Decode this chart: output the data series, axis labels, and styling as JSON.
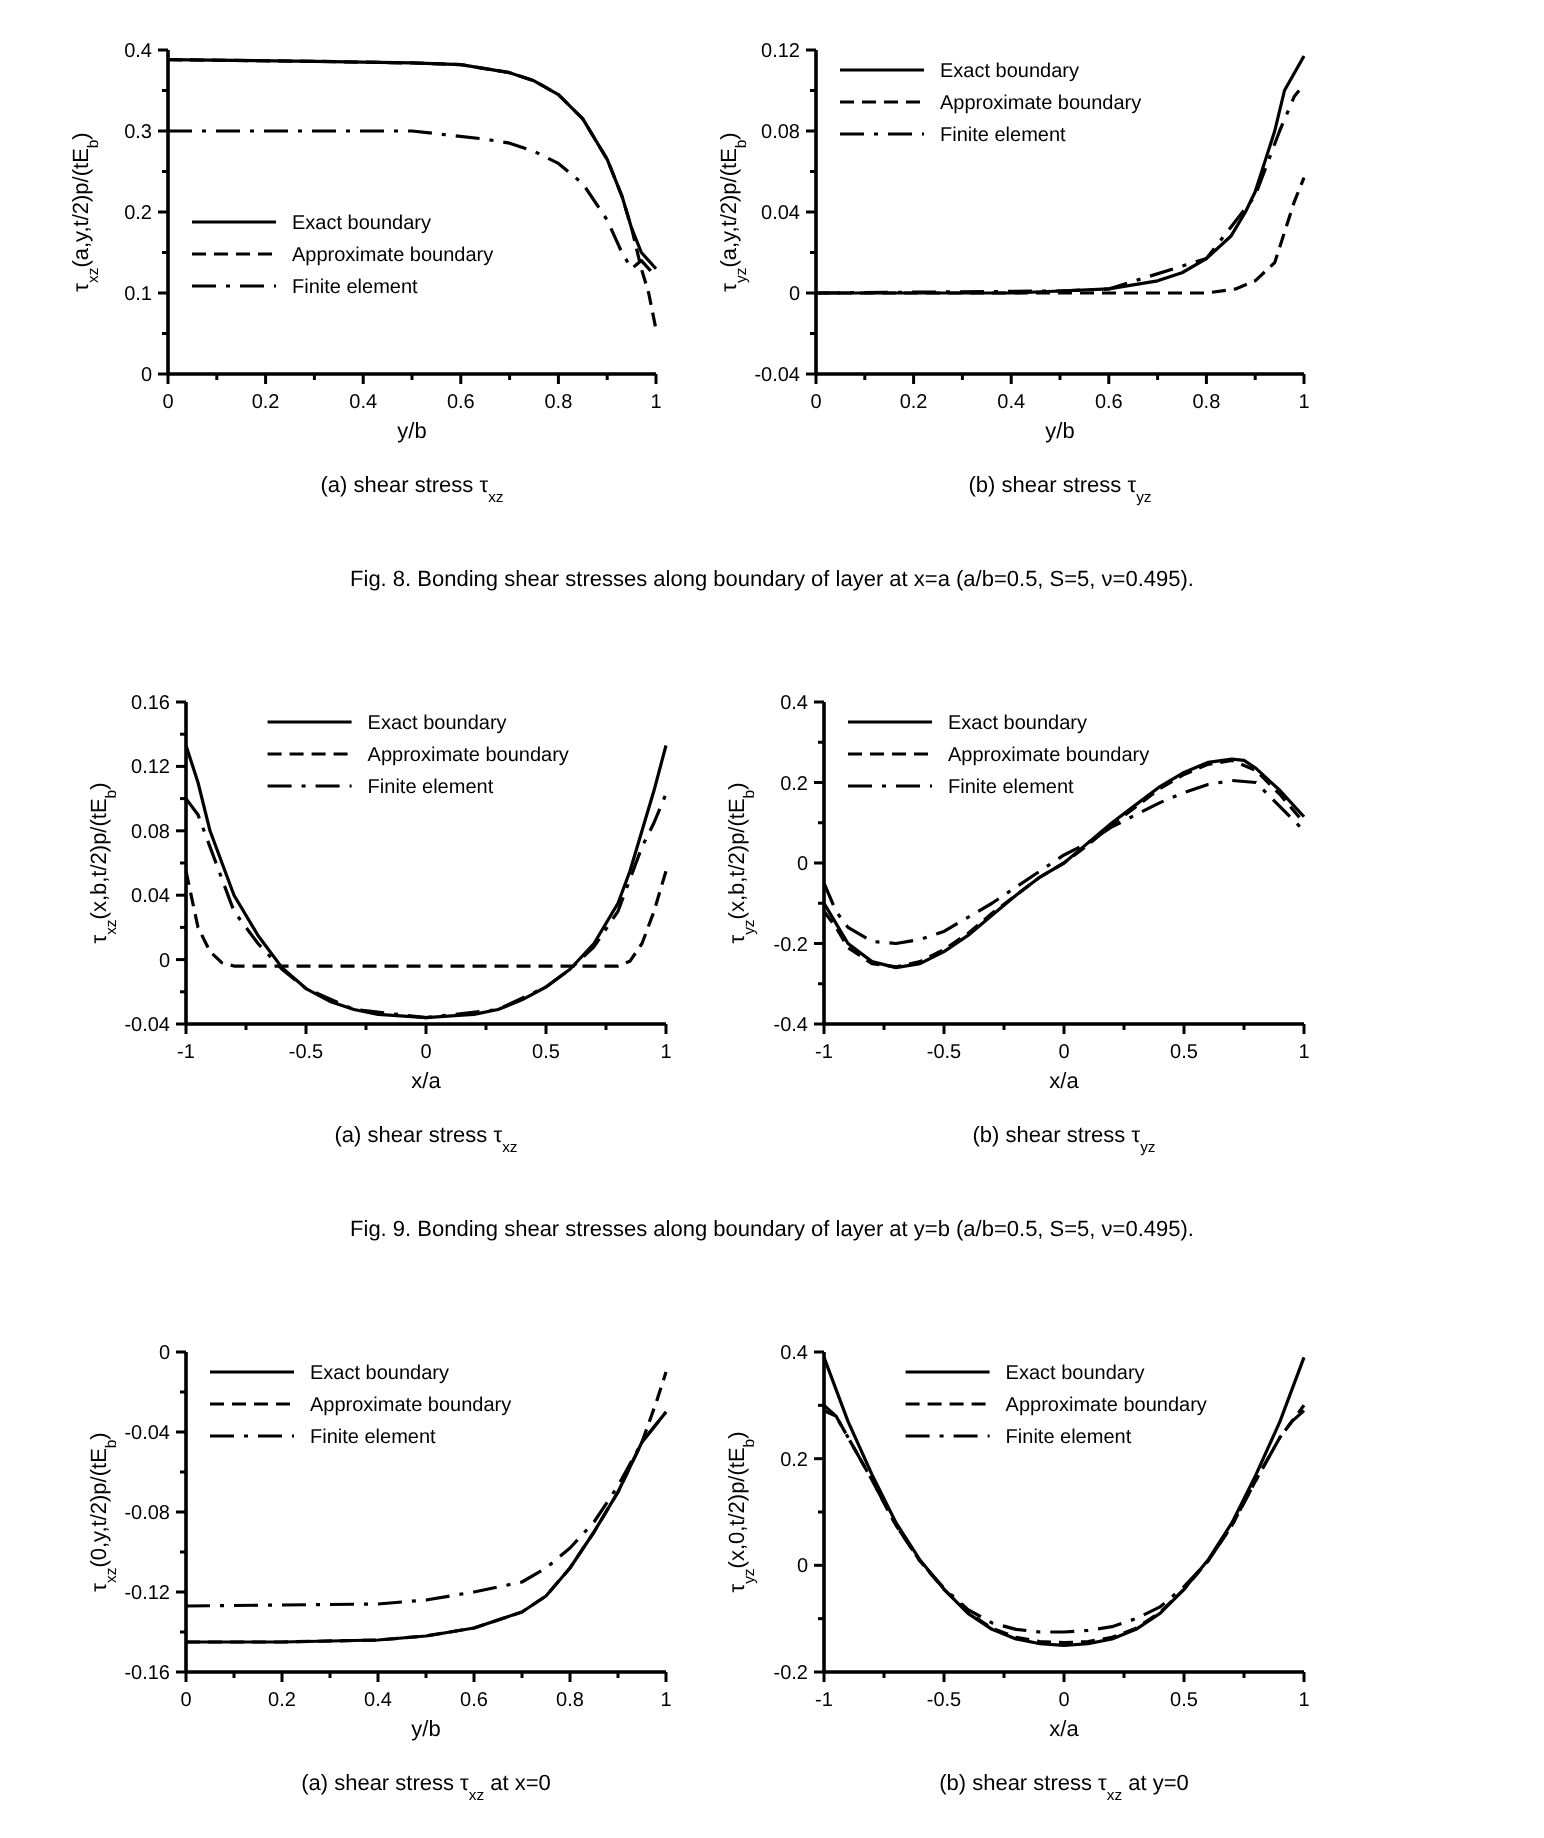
{
  "chart_data": [
    {
      "type": "line",
      "title": "(a) shear stress τ$_{xz}$",
      "xlabel": "y/b",
      "ylabel": "τ$_{xz}$(a,y,t/2)p/(tE$_{b}$)",
      "xlim": [
        0,
        1
      ],
      "ylim": [
        0,
        0.4
      ],
      "xticks": [
        0,
        {
          "value": 0.1,
          "label": null
        },
        0.2,
        {
          "value": 0.3,
          "label": null
        },
        0.4,
        {
          "value": 0.5,
          "label": null
        },
        0.6,
        {
          "value": 0.7,
          "label": null
        },
        0.8,
        {
          "value": 0.9,
          "label": null
        },
        1
      ],
      "yticks": [
        0,
        {
          "value": 0.05,
          "label": null
        },
        0.1,
        {
          "value": 0.15,
          "label": null
        },
        0.2,
        {
          "value": 0.25,
          "label": null
        },
        0.3,
        {
          "value": 0.35,
          "label": null
        },
        0.4
      ],
      "legend": "left",
      "annotations": [
        "Fig. 8. Bonding shear stresses along boundary of layer at x=a (a/b=0.5, S=5, ν=0.495)."
      ],
      "series": [
        {
          "name": "Exact boundary",
          "color": "#000000",
          "line_style": "solid",
          "x": [
            0,
            0.3,
            0.5,
            0.6,
            0.7,
            0.75,
            0.8,
            0.85,
            0.9,
            0.93,
            0.95,
            0.97,
            1
          ],
          "values": [
            0.388,
            0.386,
            0.384,
            0.382,
            0.372,
            0.362,
            0.345,
            0.315,
            0.265,
            0.22,
            0.18,
            0.15,
            0.13
          ]
        },
        {
          "name": "Approximate boundary",
          "color": "#000000",
          "line_style": "dashed",
          "x": [
            0,
            0.3,
            0.5,
            0.6,
            0.7,
            0.75,
            0.8,
            0.85,
            0.9,
            0.93,
            0.95,
            0.97,
            0.985,
            1
          ],
          "values": [
            0.388,
            0.386,
            0.384,
            0.382,
            0.372,
            0.362,
            0.345,
            0.315,
            0.265,
            0.22,
            0.18,
            0.13,
            0.1,
            0.055
          ]
        },
        {
          "name": "Finite element",
          "color": "#000000",
          "line_style": "dashdot",
          "x": [
            0,
            0.5,
            0.65,
            0.7,
            0.75,
            0.8,
            0.85,
            0.9,
            0.93,
            0.95,
            0.97,
            1
          ],
          "values": [
            0.3,
            0.3,
            0.29,
            0.285,
            0.275,
            0.26,
            0.235,
            0.19,
            0.15,
            0.13,
            0.14,
            0.12
          ]
        }
      ]
    },
    {
      "type": "line",
      "title": "(b) shear stress τ$_{yz}$",
      "xlabel": "y/b",
      "ylabel": "τ$_{yz}$(a,y,t/2)p/(tE$_{b}$)",
      "xlim": [
        0,
        1
      ],
      "ylim": [
        -0.04,
        0.12
      ],
      "xticks": [
        0,
        {
          "value": 0.1,
          "label": null
        },
        0.2,
        {
          "value": 0.3,
          "label": null
        },
        0.4,
        {
          "value": 0.5,
          "label": null
        },
        0.6,
        {
          "value": 0.7,
          "label": null
        },
        0.8,
        {
          "value": 0.9,
          "label": null
        },
        1
      ],
      "yticks": [
        -0.04,
        {
          "value": -0.02,
          "label": null
        },
        0,
        {
          "value": 0.02,
          "label": null
        },
        0.04,
        {
          "value": 0.06,
          "label": null
        },
        0.08,
        {
          "value": 0.1,
          "label": null
        },
        0.12
      ],
      "legend": "top left",
      "series": [
        {
          "name": "Exact boundary",
          "color": "#000000",
          "line_style": "solid",
          "x": [
            0,
            0.4,
            0.5,
            0.6,
            0.7,
            0.75,
            0.8,
            0.85,
            0.88,
            0.9,
            0.92,
            0.94,
            0.96,
            1
          ],
          "values": [
            0,
            0,
            0.001,
            0.002,
            0.006,
            0.01,
            0.017,
            0.028,
            0.04,
            0.05,
            0.065,
            0.08,
            0.1,
            0.117
          ]
        },
        {
          "name": "Approximate boundary",
          "color": "#000000",
          "line_style": "dashed",
          "x": [
            0,
            0.8,
            0.86,
            0.9,
            0.94,
            0.96,
            0.98,
            1
          ],
          "values": [
            0,
            0,
            0.002,
            0.006,
            0.015,
            0.03,
            0.045,
            0.057
          ]
        },
        {
          "name": "Finite element",
          "color": "#000000",
          "line_style": "dashdot",
          "x": [
            0,
            0.5,
            0.6,
            0.8,
            0.9,
            0.95,
            0.98,
            0.99
          ],
          "values": [
            0,
            0.001,
            0.002,
            0.017,
            0.048,
            0.08,
            0.097,
            0.1
          ]
        }
      ]
    },
    {
      "type": "line",
      "title": "(a) shear stress τ$_{xz}$",
      "xlabel": "x/a",
      "ylabel": "τ$_{xz}$(x,b,t/2)p/(tE$_{b}$)",
      "xlim": [
        -1,
        1
      ],
      "ylim": [
        -0.04,
        0.16
      ],
      "xticks": [
        -1,
        {
          "value": -0.75,
          "label": null
        },
        -0.5,
        {
          "value": -0.25,
          "label": null
        },
        0,
        {
          "value": 0.25,
          "label": null
        },
        0.5,
        {
          "value": 0.75,
          "label": null
        },
        1
      ],
      "yticks": [
        -0.04,
        {
          "value": -0.02,
          "label": null
        },
        0,
        {
          "value": 0.02,
          "label": null
        },
        0.04,
        {
          "value": 0.06,
          "label": null
        },
        0.08,
        {
          "value": 0.1,
          "label": null
        },
        0.12,
        {
          "value": 0.14,
          "label": null
        },
        0.16
      ],
      "legend": "top",
      "annotations": [
        "Fig. 9. Bonding shear stresses along boundary of layer at y=b (a/b=0.5, S=5, ν=0.495)."
      ],
      "series": [
        {
          "name": "Exact boundary",
          "color": "#000000",
          "line_style": "solid",
          "x": [
            -1,
            -0.95,
            -0.9,
            -0.85,
            -0.8,
            -0.7,
            -0.6,
            -0.5,
            -0.4,
            -0.3,
            -0.2,
            0,
            0.2,
            0.3,
            0.4,
            0.5,
            0.6,
            0.7,
            0.8,
            0.85,
            0.9,
            0.95,
            1
          ],
          "values": [
            0.133,
            0.11,
            0.08,
            0.06,
            0.04,
            0.015,
            -0.005,
            -0.018,
            -0.026,
            -0.031,
            -0.034,
            -0.036,
            -0.034,
            -0.031,
            -0.025,
            -0.017,
            -0.006,
            0.01,
            0.035,
            0.055,
            0.08,
            0.105,
            0.133
          ]
        },
        {
          "name": "Approximate boundary",
          "color": "#000000",
          "line_style": "dashed",
          "x": [
            -1,
            -0.95,
            -0.9,
            -0.85,
            -0.8,
            0.8,
            0.85,
            0.9,
            0.95,
            1
          ],
          "values": [
            0.055,
            0.02,
            0.005,
            -0.002,
            -0.004,
            -0.004,
            -0.001,
            0.01,
            0.03,
            0.055
          ]
        },
        {
          "name": "Finite element",
          "color": "#000000",
          "line_style": "dashdot",
          "x": [
            -1,
            -0.95,
            -0.9,
            -0.85,
            -0.8,
            -0.7,
            -0.6,
            -0.5,
            -0.3,
            0,
            0.3,
            0.5,
            0.6,
            0.7,
            0.8,
            0.9,
            0.95,
            1
          ],
          "values": [
            0.1,
            0.09,
            0.07,
            0.05,
            0.03,
            0.01,
            -0.006,
            -0.018,
            -0.031,
            -0.036,
            -0.031,
            -0.017,
            -0.006,
            0.008,
            0.03,
            0.07,
            0.085,
            0.103
          ]
        }
      ]
    },
    {
      "type": "line",
      "title": "(b) shear stress τ$_{yz}$",
      "xlabel": "x/a",
      "ylabel": "τ$_{yz}$(x,b,t/2)p/(tE$_{b}$)",
      "xlim": [
        -1,
        1
      ],
      "ylim": [
        -0.4,
        0.4
      ],
      "xticks": [
        -1,
        {
          "value": -0.75,
          "label": null
        },
        -0.5,
        {
          "value": -0.25,
          "label": null
        },
        0,
        {
          "value": 0.25,
          "label": null
        },
        0.5,
        {
          "value": 0.75,
          "label": null
        },
        1
      ],
      "yticks": [
        -0.4,
        {
          "value": -0.3,
          "label": null
        },
        -0.2,
        {
          "value": -0.1,
          "label": null
        },
        0,
        {
          "value": 0.1,
          "label": null
        },
        0.2,
        {
          "value": 0.3,
          "label": null
        },
        0.4
      ],
      "legend": "top left",
      "series": [
        {
          "name": "Exact boundary",
          "color": "#000000",
          "line_style": "solid",
          "x": [
            -1,
            -0.95,
            -0.9,
            -0.8,
            -0.7,
            -0.6,
            -0.5,
            -0.4,
            -0.3,
            -0.2,
            -0.1,
            0,
            0.1,
            0.2,
            0.3,
            0.4,
            0.5,
            0.6,
            0.7,
            0.75,
            0.8,
            0.9,
            1
          ],
          "values": [
            -0.1,
            -0.15,
            -0.2,
            -0.245,
            -0.26,
            -0.25,
            -0.22,
            -0.18,
            -0.13,
            -0.08,
            -0.035,
            0,
            0.05,
            0.1,
            0.145,
            0.19,
            0.225,
            0.25,
            0.258,
            0.255,
            0.235,
            0.18,
            0.115
          ]
        },
        {
          "name": "Approximate boundary",
          "color": "#000000",
          "line_style": "dashed",
          "x": [
            -1,
            -0.95,
            -0.9,
            -0.8,
            -0.7,
            -0.6,
            -0.5,
            -0.4,
            -0.3,
            -0.2,
            -0.1,
            0,
            0.1,
            0.2,
            0.3,
            0.4,
            0.5,
            0.6,
            0.7,
            0.8,
            0.9,
            1
          ],
          "values": [
            -0.12,
            -0.16,
            -0.21,
            -0.25,
            -0.258,
            -0.245,
            -0.215,
            -0.175,
            -0.125,
            -0.08,
            -0.035,
            0,
            0.045,
            0.095,
            0.14,
            0.185,
            0.22,
            0.245,
            0.255,
            0.23,
            0.17,
            0.1
          ]
        },
        {
          "name": "Finite element",
          "color": "#000000",
          "line_style": "dashdot",
          "x": [
            -1,
            -0.95,
            -0.9,
            -0.8,
            -0.7,
            -0.6,
            -0.5,
            -0.4,
            -0.3,
            -0.2,
            -0.1,
            0,
            0.1,
            0.2,
            0.3,
            0.4,
            0.5,
            0.6,
            0.7,
            0.8,
            0.9,
            1
          ],
          "values": [
            -0.05,
            -0.12,
            -0.16,
            -0.195,
            -0.2,
            -0.19,
            -0.17,
            -0.135,
            -0.1,
            -0.06,
            -0.02,
            0.02,
            0.05,
            0.09,
            0.12,
            0.15,
            0.175,
            0.195,
            0.205,
            0.2,
            0.14,
            0.08
          ]
        }
      ]
    },
    {
      "type": "line",
      "title": "(a) shear stress τ$_{xz}$ at x=0",
      "xlabel": "y/b",
      "ylabel": "τ$_{xz}$(0,y,t/2)p/(tE$_{b}$)",
      "xlim": [
        0,
        1
      ],
      "ylim": [
        -0.16,
        0
      ],
      "xticks": [
        0,
        {
          "value": 0.1,
          "label": null
        },
        0.2,
        {
          "value": 0.3,
          "label": null
        },
        0.4,
        {
          "value": 0.5,
          "label": null
        },
        0.6,
        {
          "value": 0.7,
          "label": null
        },
        0.8,
        {
          "value": 0.9,
          "label": null
        },
        1
      ],
      "yticks": [
        -0.16,
        {
          "value": -0.14,
          "label": null
        },
        -0.12,
        {
          "value": -0.1,
          "label": null
        },
        -0.08,
        {
          "value": -0.06,
          "label": null
        },
        -0.04,
        {
          "value": -0.02,
          "label": null
        },
        0
      ],
      "legend": "top left",
      "series": [
        {
          "name": "Exact boundary",
          "color": "#000000",
          "line_style": "solid",
          "x": [
            0,
            0.2,
            0.4,
            0.5,
            0.6,
            0.7,
            0.75,
            0.8,
            0.85,
            0.9,
            0.95,
            1
          ],
          "values": [
            -0.145,
            -0.145,
            -0.144,
            -0.142,
            -0.138,
            -0.13,
            -0.122,
            -0.108,
            -0.09,
            -0.07,
            -0.045,
            -0.03
          ]
        },
        {
          "name": "Approximate boundary",
          "color": "#000000",
          "line_style": "dashed",
          "x": [
            0,
            0.2,
            0.4,
            0.5,
            0.6,
            0.7,
            0.75,
            0.8,
            0.85,
            0.9,
            0.95,
            0.98,
            1
          ],
          "values": [
            -0.145,
            -0.145,
            -0.144,
            -0.142,
            -0.138,
            -0.13,
            -0.122,
            -0.108,
            -0.09,
            -0.07,
            -0.045,
            -0.025,
            -0.01
          ]
        },
        {
          "name": "Finite element",
          "color": "#000000",
          "line_style": "dashdot",
          "x": [
            0,
            0.4,
            0.5,
            0.6,
            0.7,
            0.75,
            0.8,
            0.85,
            0.9,
            0.95,
            1
          ],
          "values": [
            -0.127,
            -0.126,
            -0.124,
            -0.12,
            -0.115,
            -0.108,
            -0.098,
            -0.085,
            -0.067,
            -0.045,
            -0.03
          ]
        }
      ]
    },
    {
      "type": "line",
      "title": "(b) shear stress τ$_{xz}$ at y=0",
      "xlabel": "x/a",
      "ylabel": "τ$_{yz}$(x,0,t/2)p/(tE$_{b}$)",
      "xlim": [
        -1,
        1
      ],
      "ylim": [
        -0.2,
        0.4
      ],
      "xticks": [
        -1,
        {
          "value": -0.75,
          "label": null
        },
        -0.5,
        {
          "value": -0.25,
          "label": null
        },
        0,
        {
          "value": 0.25,
          "label": null
        },
        0.5,
        {
          "value": 0.75,
          "label": null
        },
        1
      ],
      "yticks": [
        -0.2,
        {
          "value": -0.1,
          "label": null
        },
        0,
        {
          "value": 0.1,
          "label": null
        },
        0.2,
        {
          "value": 0.3,
          "label": null
        },
        0.4
      ],
      "legend": "top",
      "series": [
        {
          "name": "Exact boundary",
          "color": "#000000",
          "line_style": "solid",
          "x": [
            -1,
            -0.9,
            -0.8,
            -0.7,
            -0.6,
            -0.5,
            -0.4,
            -0.3,
            -0.2,
            -0.1,
            0,
            0.1,
            0.2,
            0.3,
            0.4,
            0.5,
            0.6,
            0.7,
            0.8,
            0.9,
            1
          ],
          "values": [
            0.39,
            0.27,
            0.17,
            0.08,
            0.01,
            -0.045,
            -0.09,
            -0.12,
            -0.138,
            -0.147,
            -0.15,
            -0.147,
            -0.138,
            -0.12,
            -0.09,
            -0.045,
            0.01,
            0.08,
            0.17,
            0.27,
            0.39
          ]
        },
        {
          "name": "Approximate boundary",
          "color": "#000000",
          "line_style": "dashed",
          "x": [
            -1,
            -0.95,
            -0.9,
            -0.8,
            -0.7,
            -0.6,
            -0.5,
            -0.4,
            -0.3,
            -0.2,
            -0.1,
            0,
            0.1,
            0.2,
            0.3,
            0.4,
            0.5,
            0.6,
            0.7,
            0.8,
            0.9,
            0.95,
            1
          ],
          "values": [
            0.3,
            0.28,
            0.24,
            0.16,
            0.075,
            0.008,
            -0.045,
            -0.088,
            -0.118,
            -0.135,
            -0.143,
            -0.145,
            -0.143,
            -0.135,
            -0.118,
            -0.088,
            -0.045,
            0.008,
            0.075,
            0.16,
            0.24,
            0.27,
            0.3
          ]
        },
        {
          "name": "Finite element",
          "color": "#000000",
          "line_style": "dashdot",
          "x": [
            -1,
            -0.95,
            -0.9,
            -0.8,
            -0.7,
            -0.6,
            -0.5,
            -0.4,
            -0.3,
            -0.2,
            -0.1,
            0,
            0.1,
            0.2,
            0.3,
            0.4,
            0.5,
            0.6,
            0.7,
            0.8,
            0.9,
            0.95,
            1
          ],
          "values": [
            0.29,
            0.28,
            0.24,
            0.16,
            0.075,
            0.008,
            -0.043,
            -0.083,
            -0.108,
            -0.12,
            -0.125,
            -0.125,
            -0.122,
            -0.115,
            -0.1,
            -0.078,
            -0.04,
            0.008,
            0.075,
            0.16,
            0.24,
            0.27,
            0.29
          ]
        }
      ]
    }
  ]
}
